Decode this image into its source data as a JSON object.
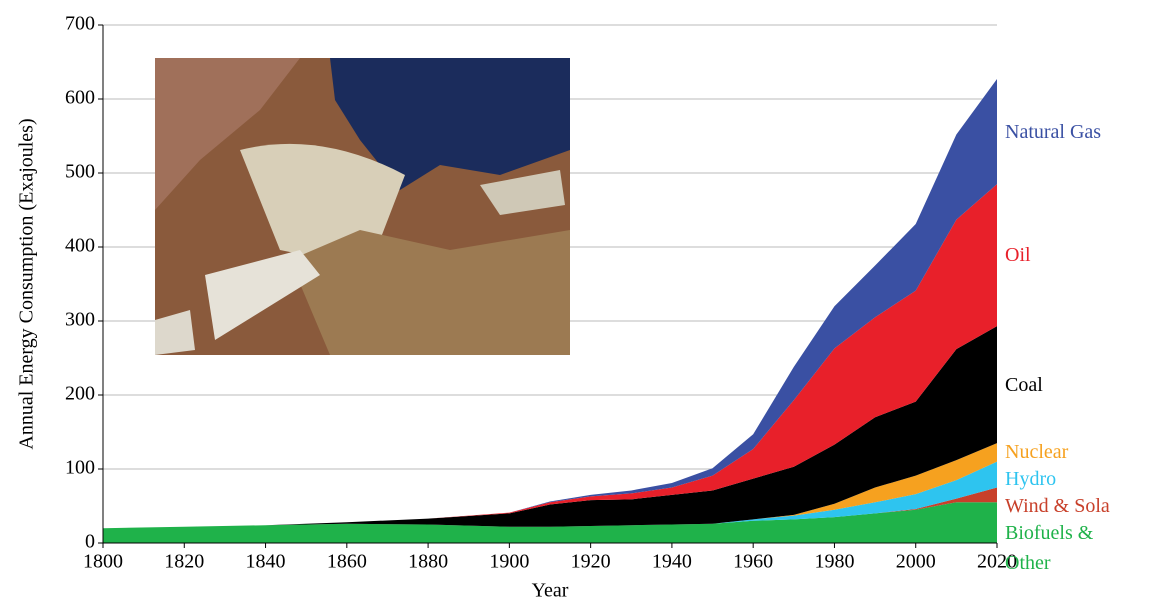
{
  "chart_data": {
    "type": "stacked_area",
    "x_label": "Year",
    "y_label": "Annual Energy Consumption (Exajoules)",
    "x": [
      1800,
      1820,
      1840,
      1860,
      1880,
      1900,
      1910,
      1920,
      1930,
      1940,
      1950,
      1960,
      1970,
      1980,
      1990,
      2000,
      2010,
      2020
    ],
    "series": [
      {
        "name": "Biofuels & Other",
        "color": "#1fb24a",
        "values": [
          20,
          22,
          24,
          26,
          25,
          22,
          22,
          23,
          24,
          25,
          26,
          30,
          32,
          35,
          40,
          45,
          55,
          55
        ]
      },
      {
        "name": "Wind & Sola",
        "color": "#c8402a",
        "values": [
          0,
          0,
          0,
          0,
          0,
          0,
          0,
          0,
          0,
          0,
          0,
          0,
          0,
          0,
          0,
          1,
          5,
          20
        ]
      },
      {
        "name": "Hydro",
        "color": "#2ec4ef",
        "values": [
          0,
          0,
          0,
          0,
          0,
          0,
          0,
          0,
          0,
          0,
          0,
          2,
          5,
          10,
          15,
          20,
          25,
          35
        ]
      },
      {
        "name": "Nuclear",
        "color": "#f6a11f",
        "values": [
          0,
          0,
          0,
          0,
          0,
          0,
          0,
          0,
          0,
          0,
          0,
          0,
          1,
          8,
          20,
          25,
          27,
          25
        ]
      },
      {
        "name": "Coal",
        "color": "#000000",
        "values": [
          0,
          0,
          0,
          2,
          8,
          18,
          30,
          35,
          35,
          40,
          45,
          55,
          65,
          80,
          95,
          100,
          150,
          158
        ]
      },
      {
        "name": "Oil",
        "color": "#e8202a",
        "values": [
          0,
          0,
          0,
          0,
          0,
          1,
          3,
          5,
          8,
          10,
          20,
          40,
          90,
          130,
          135,
          150,
          175,
          192
        ]
      },
      {
        "name": "Natural Gas",
        "color": "#3a50a3",
        "values": [
          0,
          0,
          0,
          0,
          0,
          0,
          1,
          2,
          4,
          6,
          10,
          20,
          45,
          57,
          70,
          90,
          115,
          142
        ]
      }
    ],
    "xlim": [
      1800,
      2020
    ],
    "xticks": [
      1800,
      1820,
      1840,
      1860,
      1880,
      1900,
      1920,
      1940,
      1960,
      1980,
      2000,
      2020
    ],
    "ylim": [
      0,
      700
    ],
    "yticks": [
      0,
      100,
      200,
      300,
      400,
      500,
      600,
      700
    ],
    "grid": true
  }
}
